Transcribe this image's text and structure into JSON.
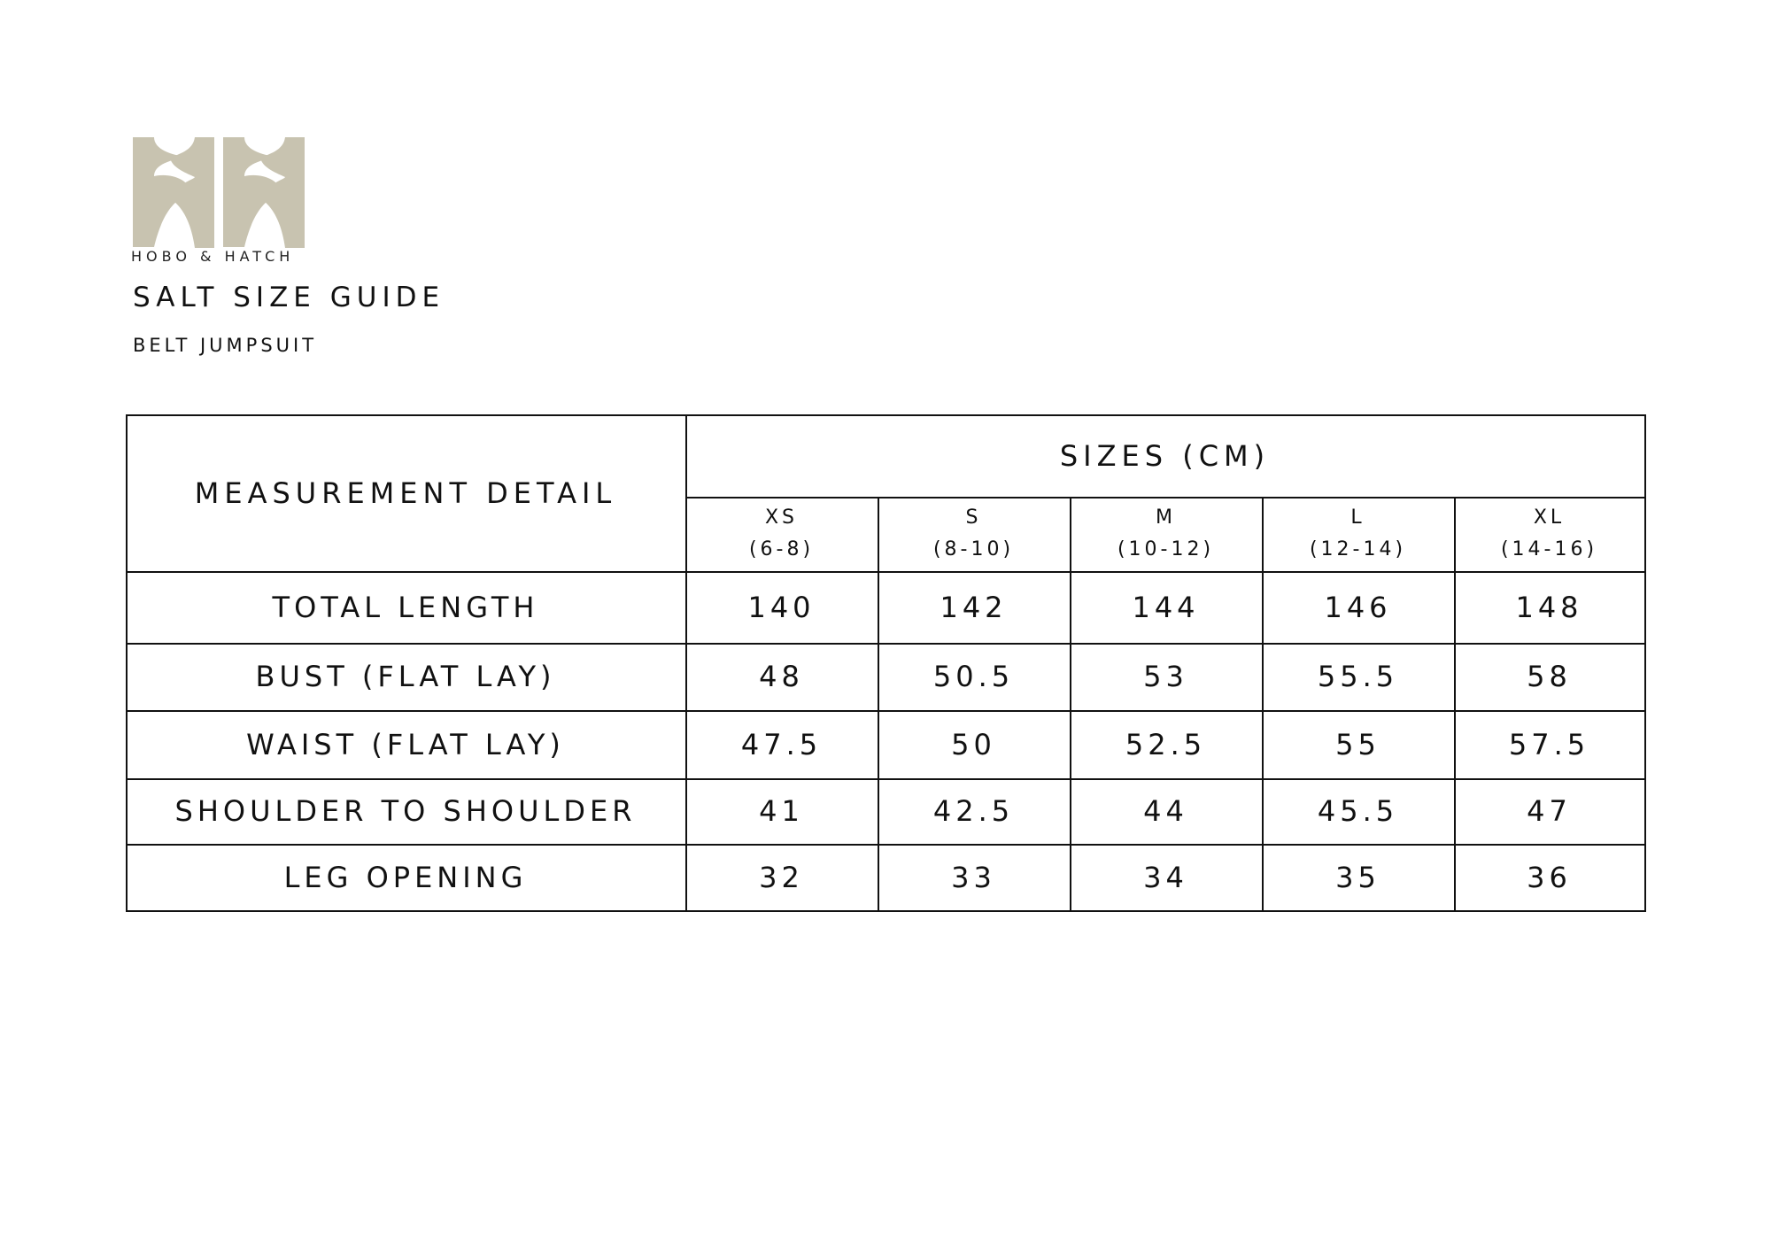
{
  "brand": {
    "name": "HOBO & HATCH",
    "logo_color": "#c8c3b0"
  },
  "title": "SALT SIZE GUIDE",
  "subtitle": "BELT JUMPSUIT",
  "table": {
    "measurement_header": "MEASUREMENT DETAIL",
    "sizes_header": "SIZES (CM)",
    "sizes": [
      {
        "label": "XS",
        "range": "(6-8)"
      },
      {
        "label": "S",
        "range": "(8-10)"
      },
      {
        "label": "M",
        "range": "(10-12)"
      },
      {
        "label": "L",
        "range": "(12-14)"
      },
      {
        "label": "XL",
        "range": "(14-16)"
      }
    ],
    "rows": [
      {
        "label": "TOTAL LENGTH",
        "values": [
          "140",
          "142",
          "144",
          "146",
          "148"
        ]
      },
      {
        "label": "BUST (FLAT LAY)",
        "values": [
          "48",
          "50.5",
          "53",
          "55.5",
          "58"
        ]
      },
      {
        "label": "WAIST (FLAT LAY)",
        "values": [
          "47.5",
          "50",
          "52.5",
          "55",
          "57.5"
        ]
      },
      {
        "label": "SHOULDER TO SHOULDER",
        "values": [
          "41",
          "42.5",
          "44",
          "45.5",
          "47"
        ]
      },
      {
        "label": "LEG OPENING",
        "values": [
          "32",
          "33",
          "34",
          "35",
          "36"
        ]
      }
    ]
  }
}
